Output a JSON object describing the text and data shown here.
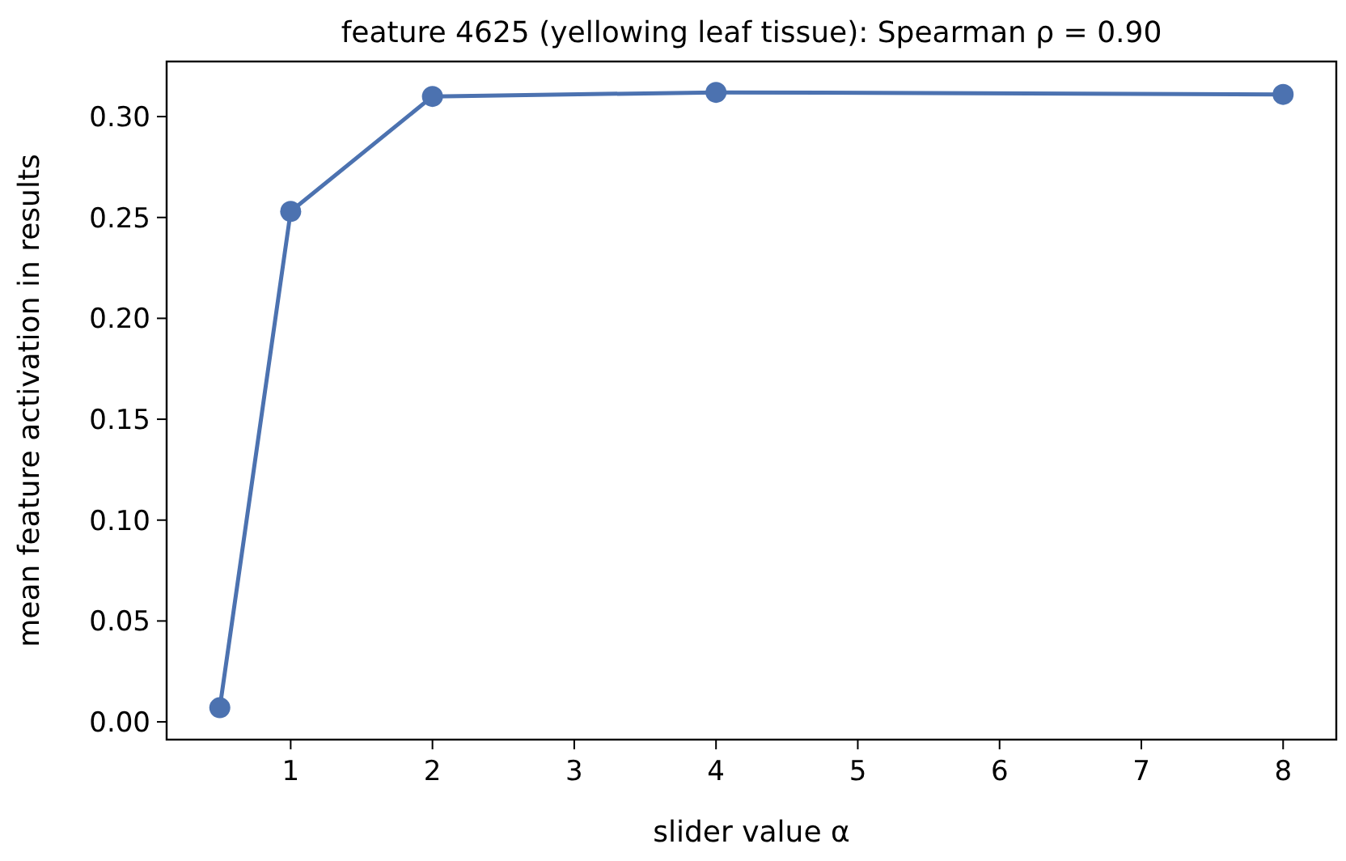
{
  "chart_data": {
    "type": "line",
    "title": "feature 4625 (yellowing leaf tissue): Spearman ρ = 0.90",
    "xlabel": "slider value α",
    "ylabel": "mean feature activation in results",
    "x": [
      0.5,
      1,
      2,
      4,
      8
    ],
    "series": [
      {
        "color": "#4c72b0",
        "values": [
          0.007,
          0.253,
          0.31,
          0.312,
          0.311
        ]
      }
    ],
    "xlim": [
      0.125,
      8.375
    ],
    "xticks": [
      1,
      2,
      3,
      4,
      5,
      6,
      7,
      8
    ],
    "ylim": [
      -0.0088,
      0.3273
    ],
    "yticks": [
      {
        "value": 0,
        "label": "0.00"
      },
      {
        "value": 0.05,
        "label": "0.05"
      },
      {
        "value": 0.1,
        "label": "0.10"
      },
      {
        "value": 0.15,
        "label": "0.15"
      },
      {
        "value": 0.2,
        "label": "0.20"
      },
      {
        "value": 0.25,
        "label": "0.25"
      },
      {
        "value": 0.3,
        "label": "0.30"
      }
    ],
    "grid": false,
    "marker": "circle",
    "line_style": "solid"
  }
}
